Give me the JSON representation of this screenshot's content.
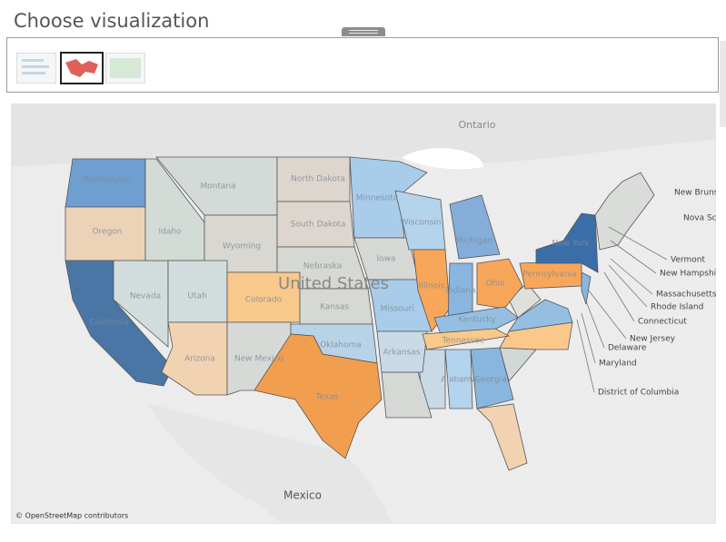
{
  "title": "Choose visualization",
  "map": {
    "places": [
      "Ontario",
      "United States",
      "Mexico"
    ],
    "states": [
      "Washington",
      "Oregon",
      "California",
      "Nevada",
      "Idaho",
      "Montana",
      "Wyoming",
      "Utah",
      "Colorado",
      "Arizona",
      "New Mexico",
      "North Dakota",
      "South Dakota",
      "Nebraska",
      "Kansas",
      "Oklahoma",
      "Texas",
      "Minnesota",
      "Iowa",
      "Missouri",
      "Arkansas",
      "Wisconsin",
      "Illinois",
      "Michigan",
      "Indiana",
      "Ohio",
      "Kentucky",
      "Tennessee",
      "Alabama",
      "Georgia",
      "Pennsylvania",
      "New York"
    ],
    "callouts": [
      "New Brunswick",
      "Nova Scotia",
      "Vermont",
      "New Hampshire",
      "Massachusetts",
      "Rhode Island",
      "Connecticut",
      "New Jersey",
      "Delaware",
      "Maryland",
      "District of Columbia"
    ],
    "attribution": "© OpenStreetMap contributors"
  }
}
